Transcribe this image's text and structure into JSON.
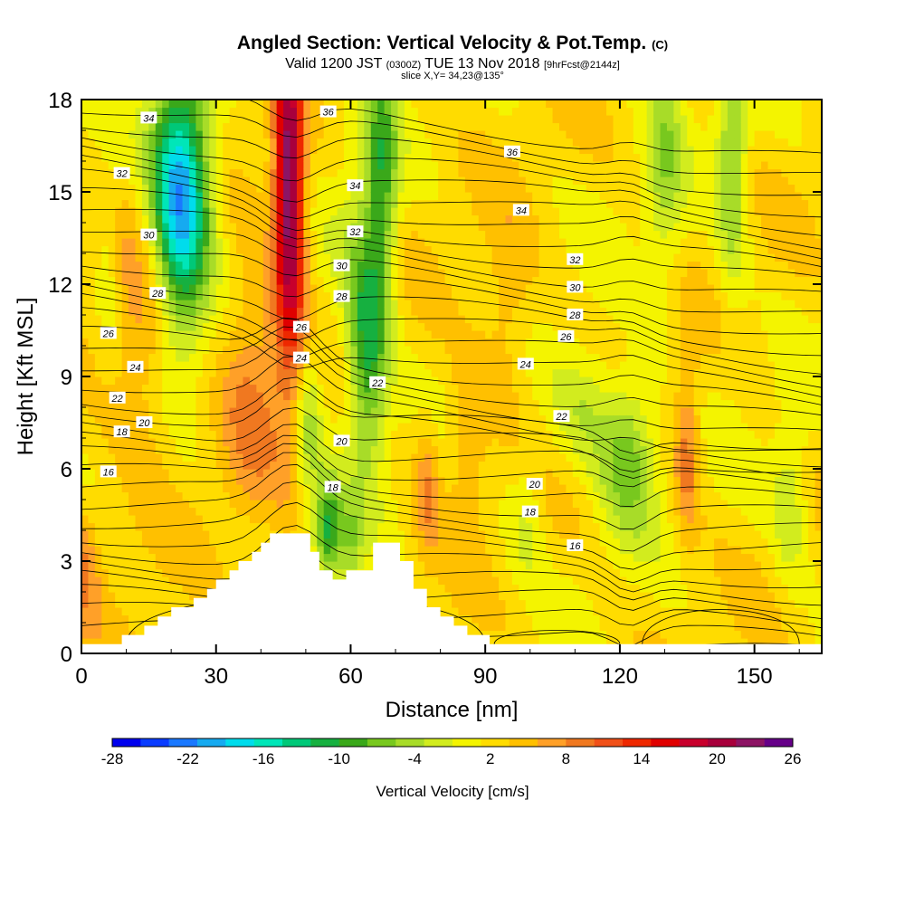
{
  "header": {
    "title": "Angled Section: Vertical Velocity & Pot.Temp.",
    "title_unit": "(C)",
    "valid_prefix": "Valid 1200 JST",
    "valid_utc": "(0300Z)",
    "valid_date": "TUE 13 Nov 2018",
    "forecast": "[9hrFcst@2144z]",
    "slice": "slice X,Y= 34,23@135°"
  },
  "chart_data": {
    "type": "heatmap",
    "xlabel": "Distance [nm]",
    "ylabel": "Height [Kft MSL]",
    "xlim": [
      0,
      165
    ],
    "ylim": [
      0,
      18
    ],
    "x_ticks": [
      "0",
      "30",
      "60",
      "90",
      "120",
      "150"
    ],
    "y_ticks": [
      "0",
      "3",
      "6",
      "9",
      "12",
      "15",
      "18"
    ],
    "colorbar": {
      "label": "Vertical Velocity [cm/s]",
      "tick_labels": [
        "-28",
        "-22",
        "-16",
        "-10",
        "-4",
        "2",
        "8",
        "14",
        "20",
        "26"
      ],
      "colors": [
        "#0000ee",
        "#0a3cff",
        "#1a78ff",
        "#16aaf0",
        "#00dcec",
        "#00e6b8",
        "#00c878",
        "#16b040",
        "#3aa81a",
        "#78c81e",
        "#a8dc28",
        "#d2ec1e",
        "#f4f400",
        "#ffdc00",
        "#ffc000",
        "#ffa028",
        "#f07820",
        "#f05018",
        "#ee2800",
        "#e00000",
        "#c8002c",
        "#a8003c",
        "#8c1464",
        "#660088"
      ]
    },
    "velocity_features": [
      {
        "x": 22,
        "y": 15.5,
        "value": -16,
        "sx": 5,
        "sy": 2.5
      },
      {
        "x": 22,
        "y": 13.5,
        "value": -10,
        "sx": 4,
        "sy": 3
      },
      {
        "x": 46,
        "y": 16.0,
        "value": 16,
        "sx": 2.2,
        "sy": 3
      },
      {
        "x": 47,
        "y": 12.0,
        "value": 10,
        "sx": 2.5,
        "sy": 4
      },
      {
        "x": 38,
        "y": 9.0,
        "value": 6,
        "sx": 5,
        "sy": 3
      },
      {
        "x": 50,
        "y": 7.5,
        "value": -8,
        "sx": 2.5,
        "sy": 2
      },
      {
        "x": 55,
        "y": 4.0,
        "value": -12,
        "sx": 2,
        "sy": 1.2
      },
      {
        "x": 60,
        "y": 3.5,
        "value": -6,
        "sx": 2,
        "sy": 1.2
      },
      {
        "x": 67,
        "y": 15.5,
        "value": -10,
        "sx": 2.5,
        "sy": 3
      },
      {
        "x": 64,
        "y": 9.5,
        "value": -10,
        "sx": 3,
        "sy": 2.5
      },
      {
        "x": 62,
        "y": 12.0,
        "value": -5,
        "sx": 4,
        "sy": 3
      },
      {
        "x": 122,
        "y": 6.5,
        "value": -9,
        "sx": 4.5,
        "sy": 1.8
      },
      {
        "x": 112,
        "y": 8.0,
        "value": -5,
        "sx": 5,
        "sy": 1.5
      },
      {
        "x": 130,
        "y": 16.0,
        "value": -6,
        "sx": 3,
        "sy": 3
      },
      {
        "x": 145,
        "y": 16.0,
        "value": -8,
        "sx": 2.5,
        "sy": 3
      },
      {
        "x": 158,
        "y": 5.0,
        "value": -5,
        "sx": 3,
        "sy": 2
      },
      {
        "x": 135,
        "y": 6.5,
        "value": 7,
        "sx": 2,
        "sy": 2
      },
      {
        "x": 99,
        "y": 4.5,
        "value": -4,
        "sx": 3,
        "sy": 1.5
      },
      {
        "x": 0,
        "y": 3.0,
        "value": 6,
        "sx": 3,
        "sy": 1.5
      },
      {
        "x": 14,
        "y": 10.0,
        "value": 5,
        "sx": 6,
        "sy": 3
      },
      {
        "x": 77,
        "y": 5.5,
        "value": 6,
        "sx": 2,
        "sy": 1.5
      },
      {
        "x": 86,
        "y": 7.0,
        "value": 5,
        "sx": 3,
        "sy": 1.8
      },
      {
        "x": 95,
        "y": 11.0,
        "value": 4,
        "sx": 4,
        "sy": 2
      },
      {
        "x": 6,
        "y": 12.5,
        "value": -4,
        "sx": 2,
        "sy": 2
      }
    ],
    "theta_contour_labels": [
      {
        "text": "34",
        "x": 15,
        "y": 17.4
      },
      {
        "text": "36",
        "x": 55,
        "y": 17.6
      },
      {
        "text": "32",
        "x": 9,
        "y": 15.6
      },
      {
        "text": "36",
        "x": 96,
        "y": 16.3
      },
      {
        "text": "34",
        "x": 61,
        "y": 15.2
      },
      {
        "text": "34",
        "x": 98,
        "y": 14.4
      },
      {
        "text": "30",
        "x": 15,
        "y": 13.6
      },
      {
        "text": "32",
        "x": 61,
        "y": 13.7
      },
      {
        "text": "32",
        "x": 110,
        "y": 12.8
      },
      {
        "text": "30",
        "x": 58,
        "y": 12.6
      },
      {
        "text": "30",
        "x": 110,
        "y": 11.9
      },
      {
        "text": "28",
        "x": 17,
        "y": 11.7
      },
      {
        "text": "28",
        "x": 58,
        "y": 11.6
      },
      {
        "text": "28",
        "x": 110,
        "y": 11.0
      },
      {
        "text": "26",
        "x": 6,
        "y": 10.4
      },
      {
        "text": "26",
        "x": 49,
        "y": 10.6
      },
      {
        "text": "26",
        "x": 108,
        "y": 10.3
      },
      {
        "text": "24",
        "x": 12,
        "y": 9.3
      },
      {
        "text": "24",
        "x": 49,
        "y": 9.6
      },
      {
        "text": "24",
        "x": 99,
        "y": 9.4
      },
      {
        "text": "22",
        "x": 8,
        "y": 8.3
      },
      {
        "text": "22",
        "x": 66,
        "y": 8.8
      },
      {
        "text": "22",
        "x": 107,
        "y": 7.7
      },
      {
        "text": "20",
        "x": 14,
        "y": 7.5
      },
      {
        "text": "20",
        "x": 58,
        "y": 6.9
      },
      {
        "text": "20",
        "x": 101,
        "y": 5.5
      },
      {
        "text": "18",
        "x": 9,
        "y": 7.2
      },
      {
        "text": "18",
        "x": 56,
        "y": 5.4
      },
      {
        "text": "18",
        "x": 100,
        "y": 4.6
      },
      {
        "text": "16",
        "x": 6,
        "y": 5.9
      },
      {
        "text": "16",
        "x": 110,
        "y": 3.5
      }
    ],
    "terrain": [
      [
        0,
        0.3
      ],
      [
        9,
        0.3
      ],
      [
        9,
        0.6
      ],
      [
        14,
        0.6
      ],
      [
        14,
        0.9
      ],
      [
        17,
        0.9
      ],
      [
        17,
        1.2
      ],
      [
        20,
        1.2
      ],
      [
        20,
        1.5
      ],
      [
        25,
        1.5
      ],
      [
        25,
        1.8
      ],
      [
        28,
        1.8
      ],
      [
        28,
        2.1
      ],
      [
        30,
        2.1
      ],
      [
        30,
        2.4
      ],
      [
        33,
        2.4
      ],
      [
        33,
        2.7
      ],
      [
        35,
        2.7
      ],
      [
        35,
        3.0
      ],
      [
        38,
        3.0
      ],
      [
        38,
        3.3
      ],
      [
        40,
        3.3
      ],
      [
        40,
        3.6
      ],
      [
        42,
        3.6
      ],
      [
        42,
        3.9
      ],
      [
        51,
        3.9
      ],
      [
        51,
        3.3
      ],
      [
        53,
        3.3
      ],
      [
        53,
        2.7
      ],
      [
        56,
        2.7
      ],
      [
        56,
        2.4
      ],
      [
        59,
        2.4
      ],
      [
        59,
        2.7
      ],
      [
        65,
        2.7
      ],
      [
        65,
        3.6
      ],
      [
        71,
        3.6
      ],
      [
        71,
        3.0
      ],
      [
        74,
        3.0
      ],
      [
        74,
        2.1
      ],
      [
        77,
        2.1
      ],
      [
        77,
        1.5
      ],
      [
        80,
        1.5
      ],
      [
        80,
        1.2
      ],
      [
        83,
        1.2
      ],
      [
        83,
        0.9
      ],
      [
        86,
        0.9
      ],
      [
        86,
        0.6
      ],
      [
        91,
        0.6
      ],
      [
        91,
        0.3
      ],
      [
        165,
        0.3
      ]
    ]
  }
}
